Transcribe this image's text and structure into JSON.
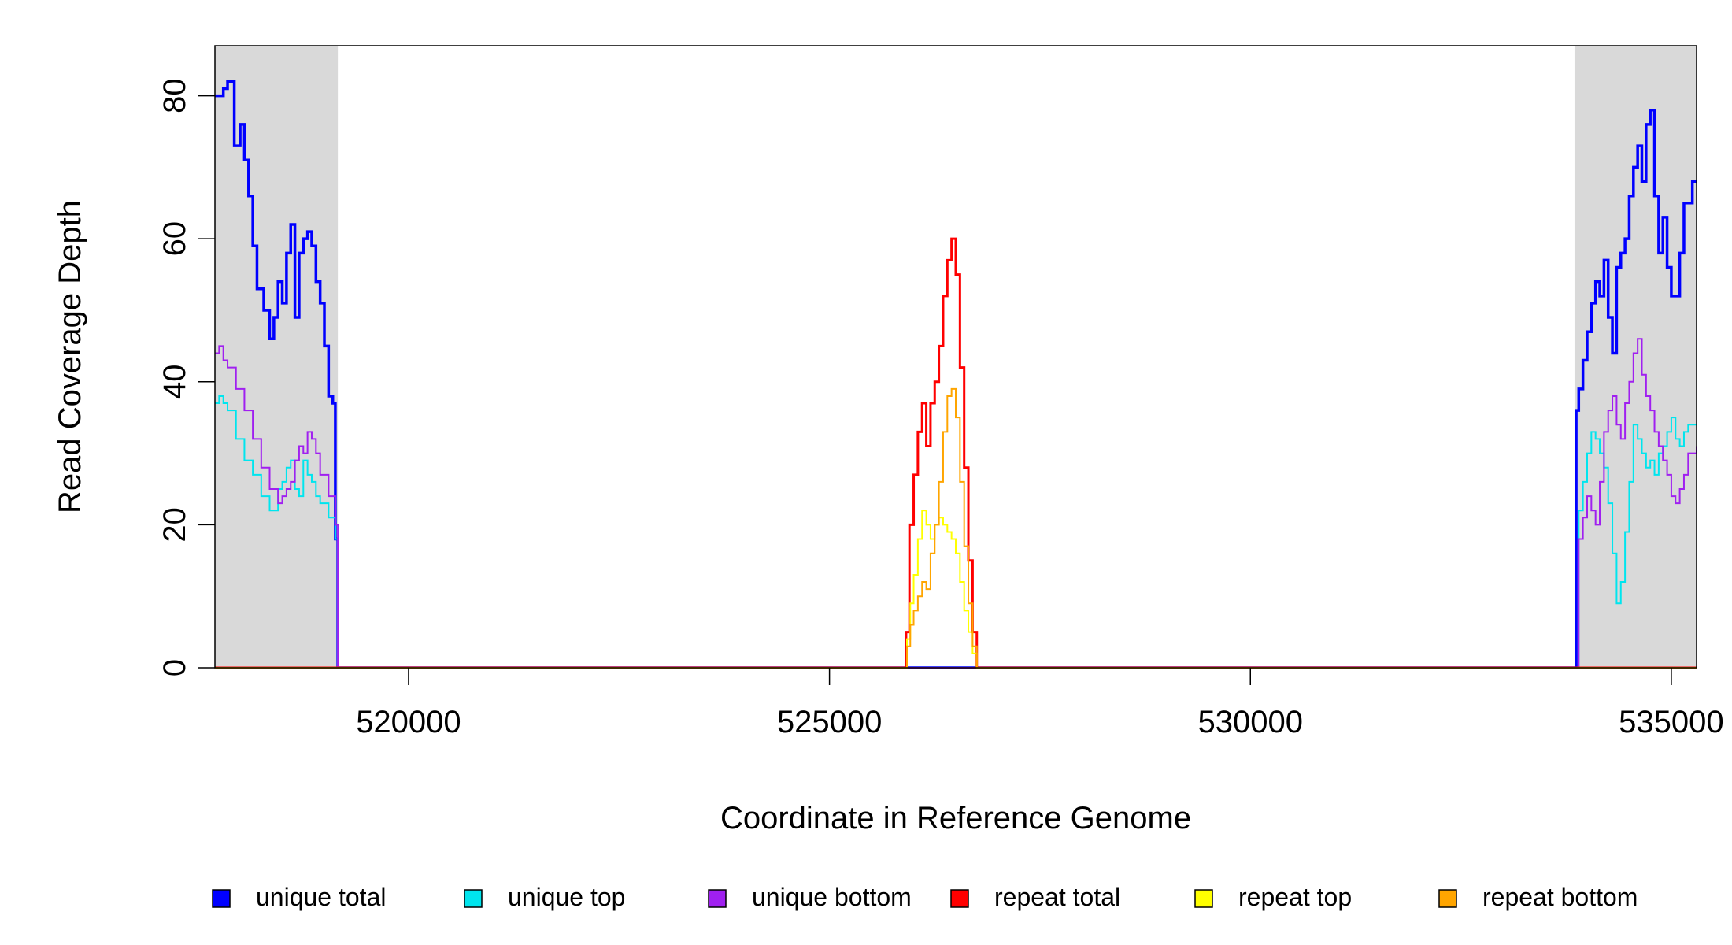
{
  "chart_data": {
    "type": "line",
    "title": "",
    "xlabel": "Coordinate in Reference Genome",
    "ylabel": "Read Coverage Depth",
    "xlim": [
      517700,
      535300
    ],
    "ylim": [
      0,
      87
    ],
    "x_ticks": [
      520000,
      525000,
      530000,
      535000
    ],
    "x_tick_labels": [
      "520000",
      "525000",
      "530000",
      "535000"
    ],
    "y_ticks": [
      0,
      20,
      40,
      60,
      80
    ],
    "y_tick_labels": [
      "0",
      "20",
      "40",
      "60",
      "80"
    ],
    "grid": false,
    "legend_position": "bottom",
    "shaded_regions": [
      {
        "x0": 517700,
        "x1": 519160,
        "color": "#d9d9d9"
      },
      {
        "x0": 533850,
        "x1": 535300,
        "color": "#d9d9d9"
      }
    ],
    "series": [
      {
        "name": "unique total",
        "color": "#0000ff",
        "line_width": 3.5,
        "x": [
          517700,
          517720,
          517800,
          517850,
          517930,
          518000,
          518050,
          518100,
          518150,
          518200,
          518280,
          518350,
          518400,
          518450,
          518500,
          518550,
          518600,
          518650,
          518700,
          518750,
          518800,
          518850,
          518900,
          518950,
          519000,
          519050,
          519100,
          519130,
          519160,
          519170,
          519200,
          533800,
          533850,
          533870,
          533900,
          533950,
          534000,
          534050,
          534100,
          534150,
          534200,
          534250,
          534300,
          534350,
          534400,
          534450,
          534500,
          534550,
          534600,
          534650,
          534700,
          534750,
          534800,
          534850,
          534900,
          534950,
          535000,
          535050,
          535100,
          535150,
          535200,
          535250,
          535300
        ],
        "y": [
          80,
          80,
          81,
          82,
          73,
          76,
          71,
          66,
          59,
          53,
          50,
          46,
          49,
          54,
          51,
          58,
          62,
          49,
          58,
          60,
          61,
          59,
          54,
          51,
          45,
          38,
          37,
          18,
          0,
          0,
          0,
          0,
          0,
          36,
          39,
          43,
          47,
          51,
          54,
          52,
          57,
          49,
          44,
          56,
          58,
          60,
          66,
          70,
          73,
          68,
          76,
          78,
          66,
          58,
          63,
          56,
          52,
          52,
          58,
          65,
          65,
          68,
          68
        ]
      },
      {
        "name": "unique top",
        "color": "#00e5ee",
        "line_width": 2,
        "x": [
          517700,
          517750,
          517800,
          517850,
          517950,
          518050,
          518150,
          518250,
          518350,
          518450,
          518500,
          518550,
          518600,
          518650,
          518700,
          518750,
          518800,
          518850,
          518900,
          518950,
          519050,
          519130,
          519160,
          519200,
          533800,
          533850,
          533900,
          533950,
          534000,
          534050,
          534100,
          534150,
          534200,
          534250,
          534300,
          534350,
          534400,
          534450,
          534500,
          534550,
          534600,
          534650,
          534700,
          534750,
          534800,
          534850,
          534900,
          534950,
          535000,
          535050,
          535100,
          535150,
          535200,
          535300
        ],
        "y": [
          37,
          38,
          37,
          36,
          32,
          29,
          27,
          24,
          22,
          25,
          26,
          28,
          29,
          25,
          24,
          29,
          27,
          26,
          24,
          23,
          21,
          18,
          0,
          0,
          0,
          0,
          22,
          26,
          30,
          33,
          32,
          30,
          28,
          23,
          16,
          9,
          12,
          19,
          26,
          34,
          32,
          30,
          28,
          29,
          27,
          30,
          31,
          33,
          35,
          32,
          31,
          33,
          34,
          34
        ]
      },
      {
        "name": "unique bottom",
        "color": "#a020f0",
        "line_width": 2,
        "x": [
          517700,
          517750,
          517800,
          517850,
          517950,
          518050,
          518150,
          518250,
          518350,
          518450,
          518500,
          518550,
          518600,
          518650,
          518700,
          518750,
          518800,
          518850,
          518900,
          518950,
          519050,
          519130,
          519160,
          519200,
          533800,
          533850,
          533900,
          533950,
          534000,
          534050,
          534100,
          534150,
          534200,
          534250,
          534300,
          534350,
          534400,
          534450,
          534500,
          534550,
          534600,
          534650,
          534700,
          534750,
          534800,
          534850,
          534900,
          534950,
          535000,
          535050,
          535100,
          535150,
          535200,
          535300
        ],
        "y": [
          44,
          45,
          43,
          42,
          39,
          36,
          32,
          28,
          25,
          23,
          24,
          25,
          26,
          29,
          31,
          30,
          33,
          32,
          30,
          27,
          24,
          20,
          0,
          0,
          0,
          0,
          18,
          21,
          24,
          22,
          20,
          26,
          33,
          36,
          38,
          34,
          32,
          37,
          40,
          44,
          46,
          41,
          38,
          36,
          33,
          31,
          29,
          27,
          24,
          23,
          25,
          27,
          30,
          31
        ]
      },
      {
        "name": "repeat total",
        "color": "#ff0000",
        "line_width": 3,
        "x": [
          517700,
          525880,
          525910,
          525950,
          526000,
          526050,
          526100,
          526150,
          526200,
          526250,
          526300,
          526350,
          526400,
          526450,
          526500,
          526550,
          526600,
          526650,
          526700,
          526750,
          526800,
          535300
        ],
        "y": [
          0,
          0,
          5,
          20,
          27,
          33,
          37,
          31,
          37,
          40,
          45,
          52,
          57,
          60,
          55,
          42,
          28,
          15,
          5,
          0,
          0,
          0
        ]
      },
      {
        "name": "repeat top",
        "color": "#ffff00",
        "line_width": 2,
        "x": [
          517700,
          525880,
          525920,
          525960,
          526000,
          526050,
          526100,
          526150,
          526200,
          526250,
          526300,
          526350,
          526400,
          526450,
          526500,
          526550,
          526600,
          526650,
          526700,
          526750,
          526800,
          535300
        ],
        "y": [
          0,
          0,
          4,
          9,
          13,
          18,
          22,
          20,
          18,
          20,
          21,
          20,
          19,
          18,
          16,
          12,
          8,
          5,
          2,
          0,
          0,
          0
        ]
      },
      {
        "name": "repeat bottom",
        "color": "#ffa500",
        "line_width": 2,
        "x": [
          517700,
          525880,
          525920,
          525960,
          526000,
          526050,
          526100,
          526150,
          526200,
          526250,
          526300,
          526350,
          526400,
          526450,
          526500,
          526550,
          526600,
          526650,
          526700,
          526750,
          526800,
          535300
        ],
        "y": [
          0,
          0,
          3,
          6,
          8,
          10,
          12,
          11,
          16,
          20,
          26,
          33,
          38,
          39,
          35,
          26,
          17,
          9,
          3,
          0,
          0,
          0
        ]
      }
    ]
  }
}
